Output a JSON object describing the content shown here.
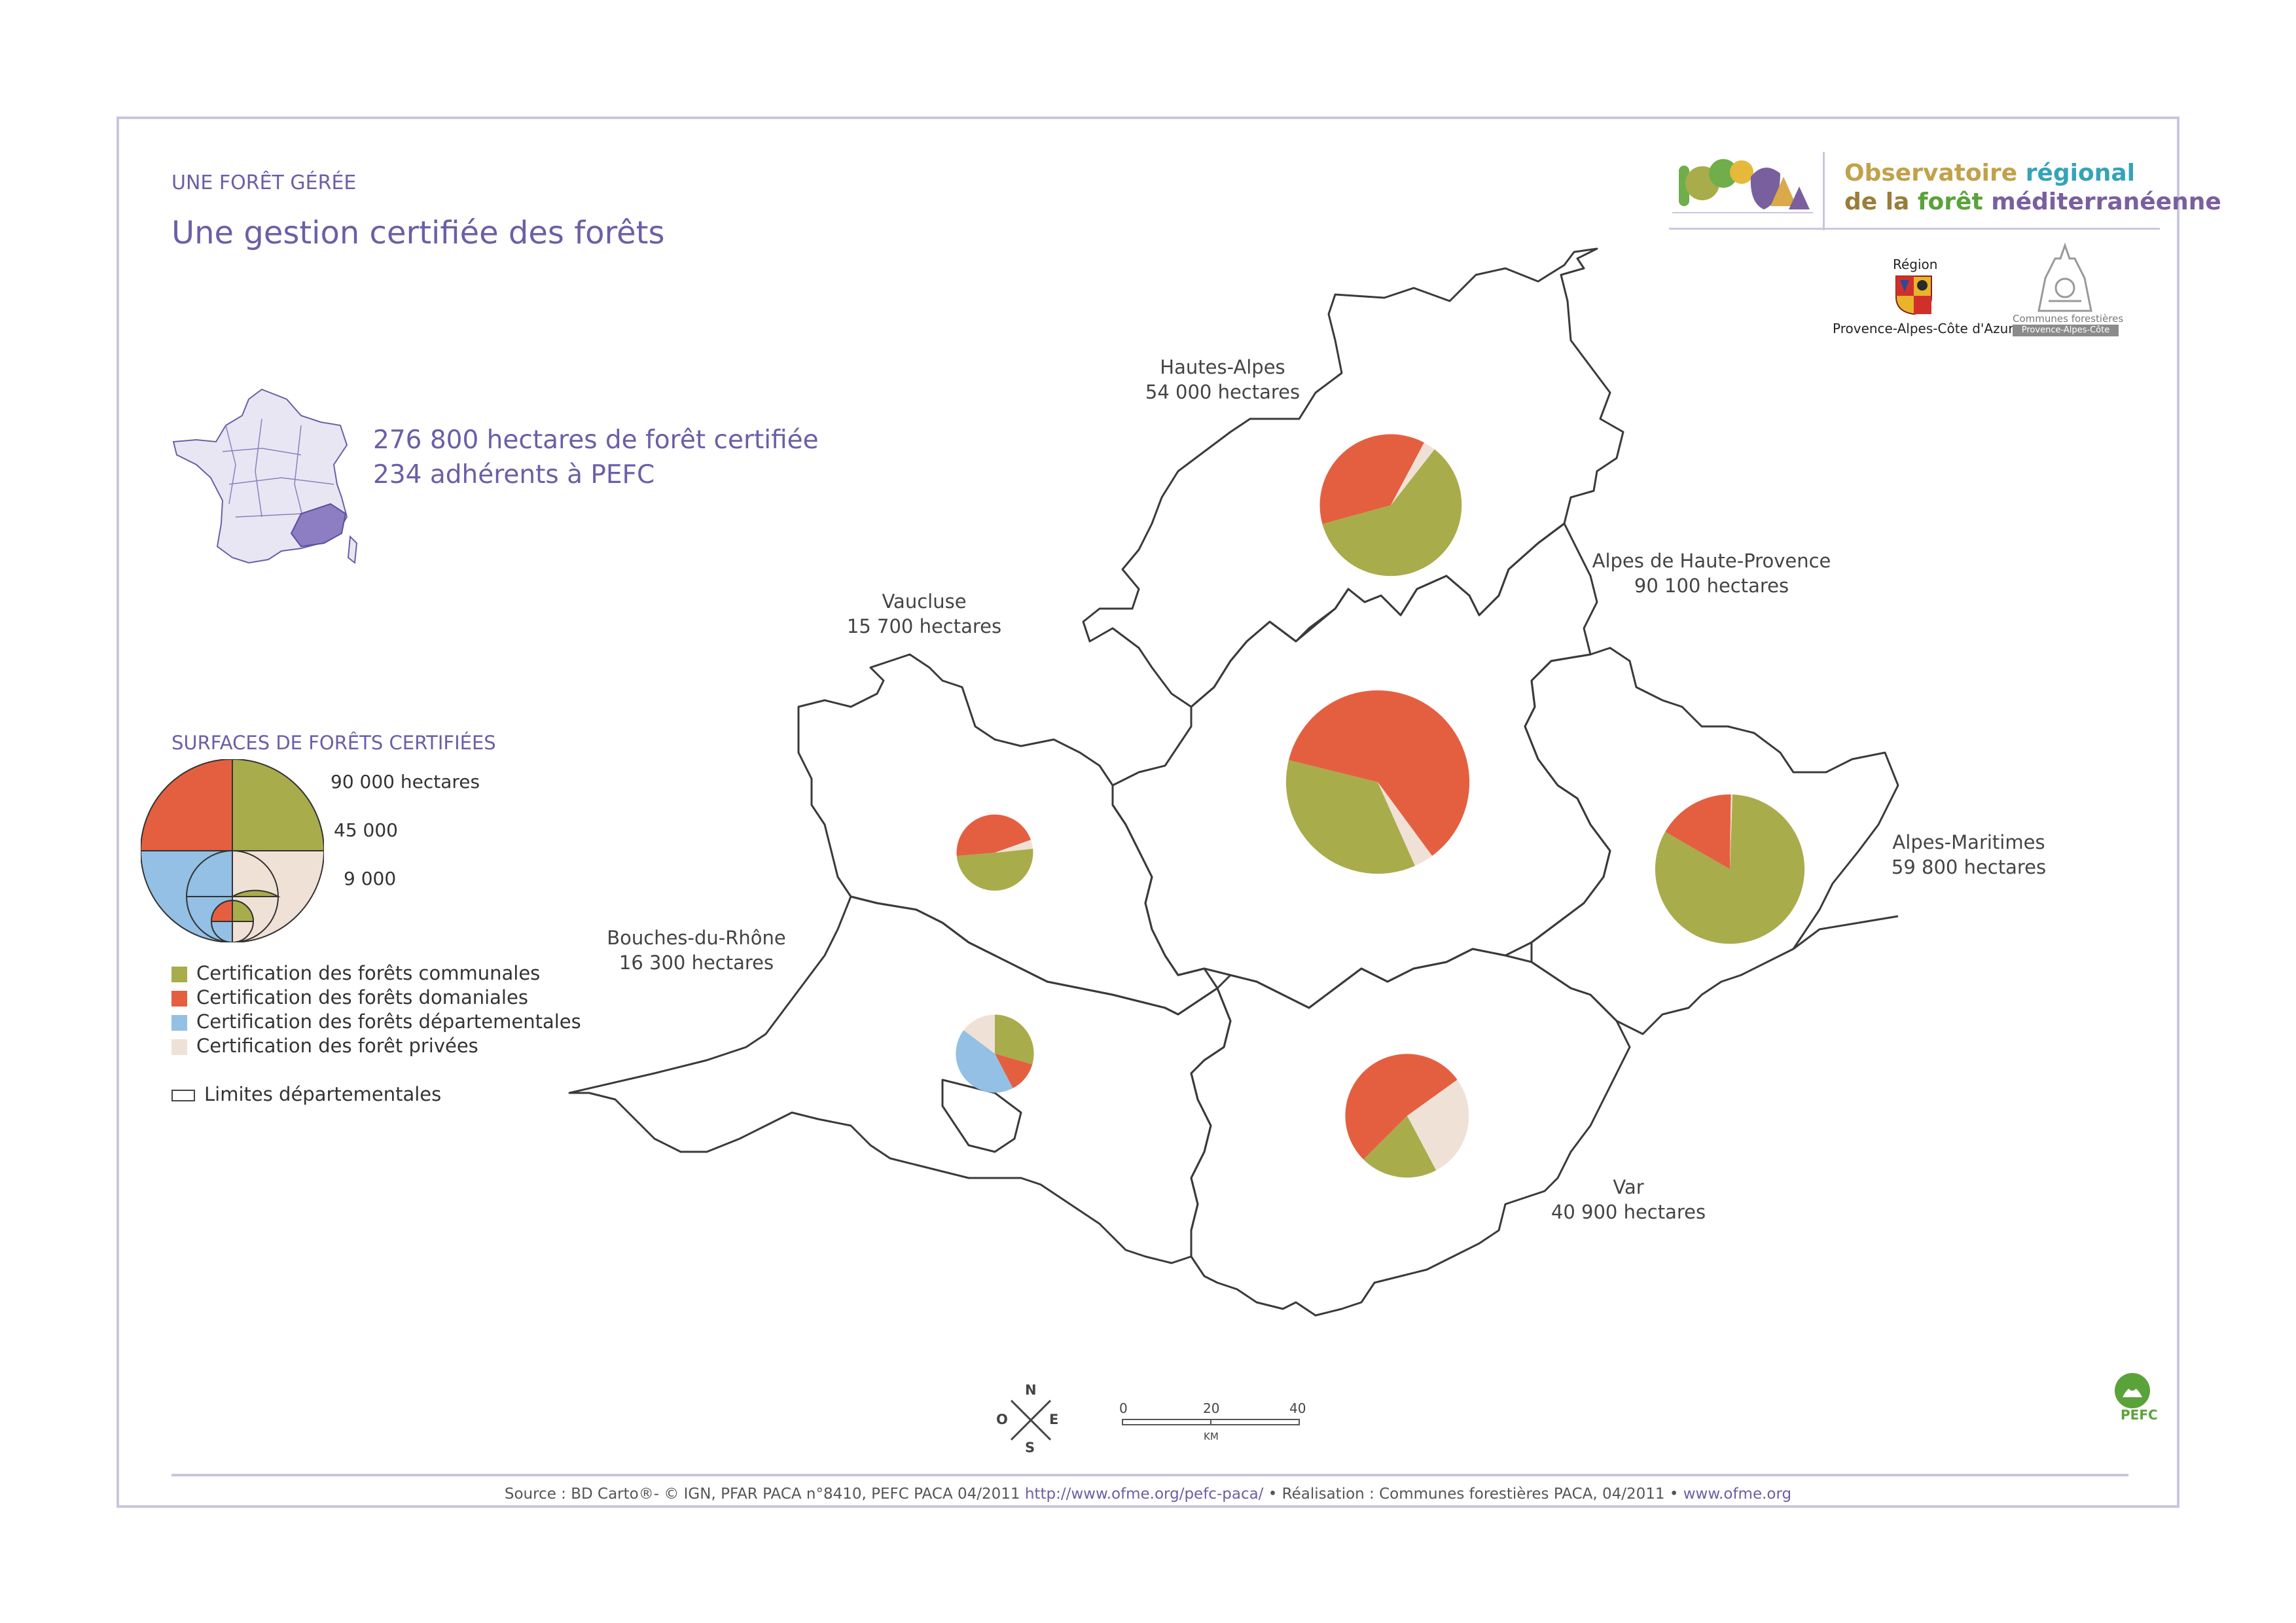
{
  "header": {
    "section": "UNE FORÊT GÉRÉE",
    "title": "Une gestion certifiée des forêts"
  },
  "stats": {
    "area": "276 800 hectares de forêt certifiée",
    "members": "234 adhérents à PEFC"
  },
  "logos": {
    "observatoire_line1": [
      "Observatoire ",
      "régional"
    ],
    "observatoire_line2": [
      "de la ",
      "forêt ",
      "méditerranéenne"
    ],
    "region_label": "Région",
    "region_name": "Provence-Alpes-Côte d'Azur",
    "cofor_label": "Communes forestières",
    "cofor_band": "Provence-Alpes-Côte d'Azur",
    "pefc": "PEFC"
  },
  "legend": {
    "title": "SURFACES DE FORÊTS CERTIFIÉES",
    "size_labels": [
      "90 000 hectares",
      "45 000",
      "9 000"
    ],
    "categories": [
      {
        "label": "Certification des forêts communales",
        "color": "#a9ac4b"
      },
      {
        "label": "Certification des forêts domaniales",
        "color": "#e45f40"
      },
      {
        "label": "Certification des forêts départementales",
        "color": "#93c0e4"
      },
      {
        "label": "Certification des forêt privées",
        "color": "#f0e1d6"
      }
    ],
    "boundary_label": "Limites départementales"
  },
  "departments": [
    {
      "name": "Hautes-Alpes",
      "area": "54 000 hectares"
    },
    {
      "name": "Alpes de Haute-Provence",
      "area": "90 100 hectares"
    },
    {
      "name": "Vaucluse",
      "area": "15 700 hectares"
    },
    {
      "name": "Alpes-Maritimes",
      "area": "59 800 hectares"
    },
    {
      "name": "Bouches-du-Rhône",
      "area": "16 300 hectares"
    },
    {
      "name": "Var",
      "area": "40 900 hectares"
    }
  ],
  "chart_data": {
    "type": "pie",
    "note_units": "hectares",
    "series_order": [
      "communales",
      "domaniales",
      "départementales",
      "privées"
    ],
    "pies": [
      {
        "name": "Hautes-Alpes",
        "total": 54000,
        "values": [
          32500,
          20000,
          0,
          1500
        ]
      },
      {
        "name": "Alpes de Haute-Provence",
        "total": 90100,
        "values": [
          32000,
          55000,
          0,
          3100
        ]
      },
      {
        "name": "Vaucluse",
        "total": 15700,
        "values": [
          7900,
          7200,
          0,
          600
        ]
      },
      {
        "name": "Alpes-Maritimes",
        "total": 59800,
        "values": [
          49500,
          10100,
          0,
          200
        ]
      },
      {
        "name": "Bouches-du-Rhône",
        "total": 16300,
        "values": [
          4800,
          2100,
          7000,
          2400
        ]
      },
      {
        "name": "Var",
        "total": 40900,
        "values": [
          8300,
          21500,
          0,
          11100
        ]
      }
    ]
  },
  "north_arrow": {
    "n": "N",
    "s": "S",
    "e": "E",
    "o": "O"
  },
  "scale": {
    "ticks": [
      "0",
      "20",
      "40"
    ],
    "unit": "KM"
  },
  "footer": {
    "source_pre": "Source : BD Carto®- © IGN,  PFAR PACA n°8410, PEFC PACA 04/2011 ",
    "link1": "http://www.ofme.org/pefc-paca/",
    "source_mid": " • Réalisation : Communes forestières PACA, 04/2011 • ",
    "link2": "www.ofme.org"
  }
}
